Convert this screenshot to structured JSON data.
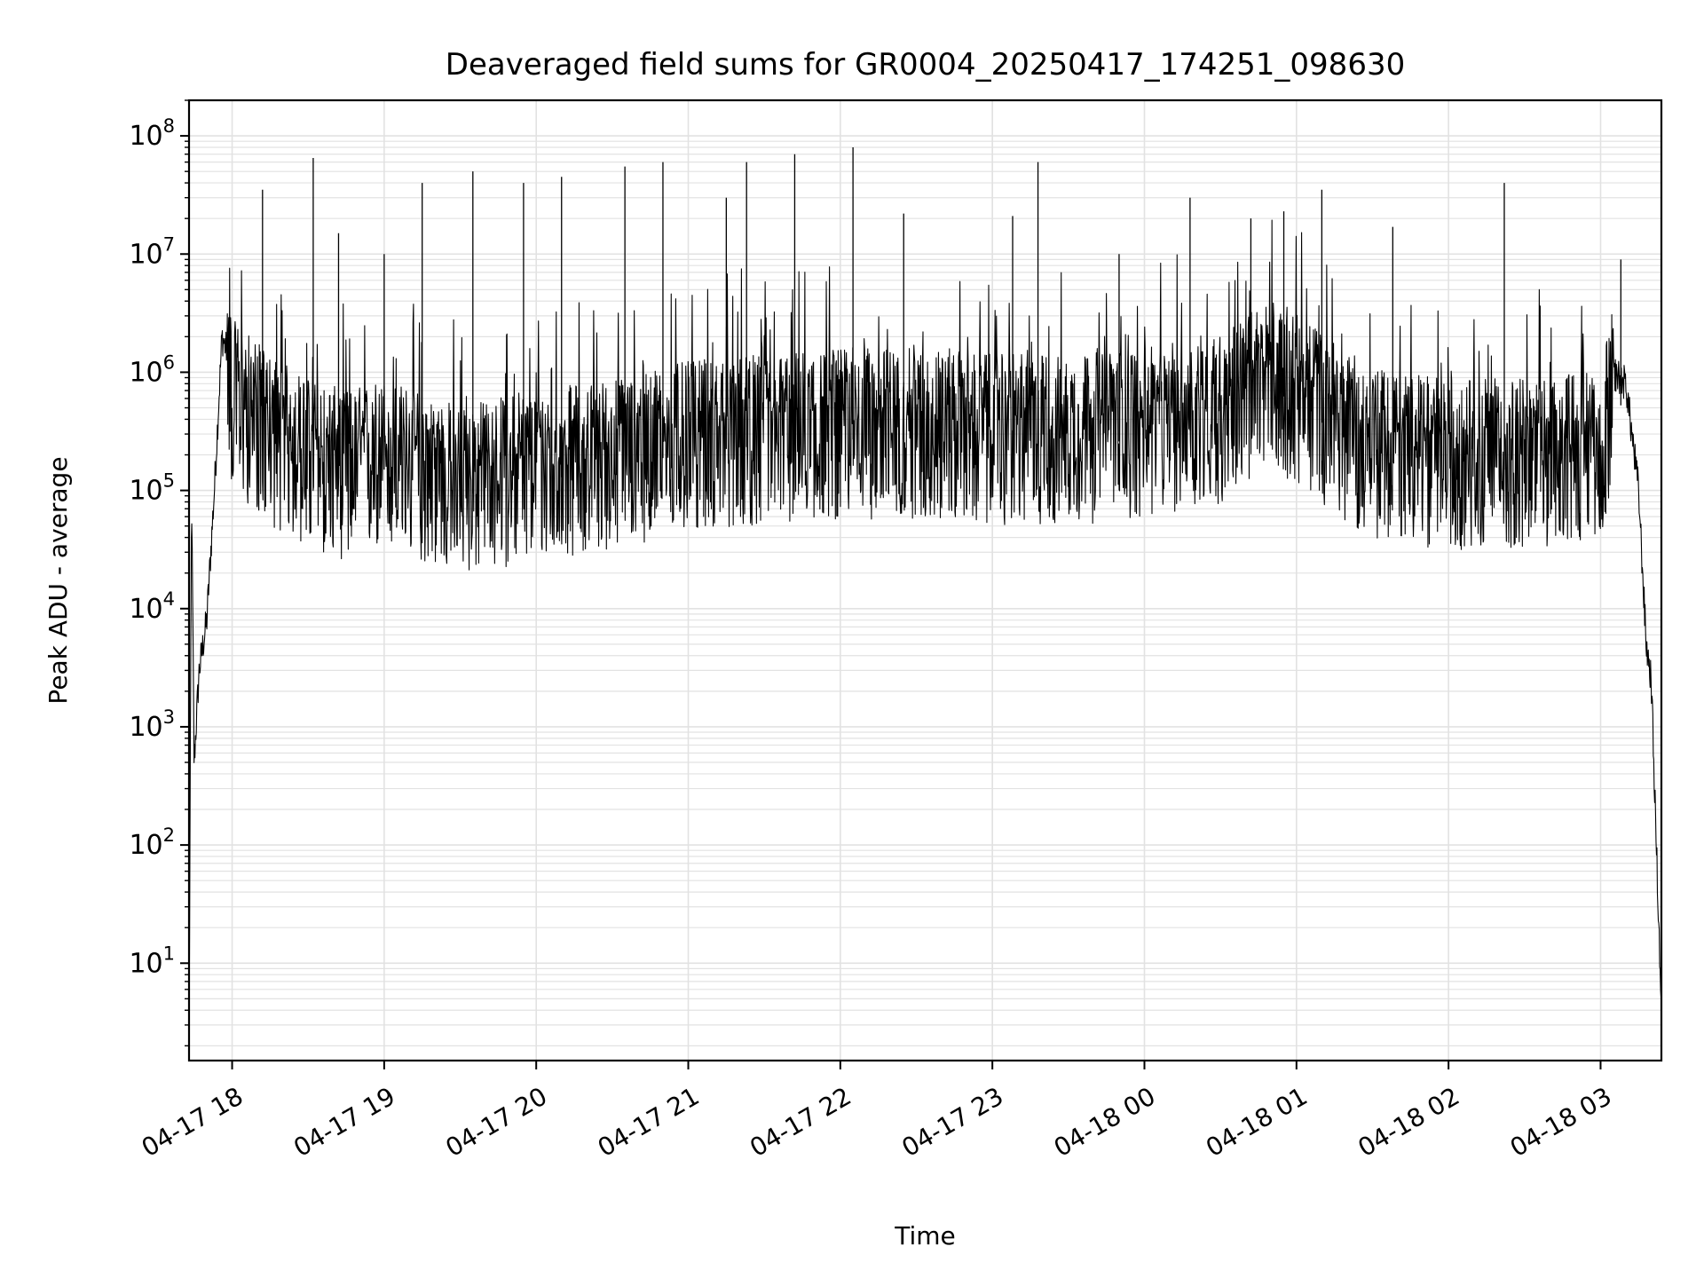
{
  "chart_data": {
    "type": "line",
    "title": "Deaveraged field sums for GR0004_20250417_174251_098630",
    "xlabel": "Time",
    "ylabel": "Peak ADU - average",
    "yscale": "log",
    "ylim": [
      1.5,
      200000000
    ],
    "xlim": [
      "2025-04-17 17:43",
      "2025-04-18 03:24"
    ],
    "grid": "major and minor",
    "x_ticks": [
      "04-17 18",
      "04-17 19",
      "04-17 20",
      "04-17 21",
      "04-17 22",
      "04-17 23",
      "04-18 00",
      "04-18 01",
      "04-18 02",
      "04-18 03"
    ],
    "y_ticks": [
      {
        "base": "10",
        "exp": "1"
      },
      {
        "base": "10",
        "exp": "2"
      },
      {
        "base": "10",
        "exp": "3"
      },
      {
        "base": "10",
        "exp": "4"
      },
      {
        "base": "10",
        "exp": "5"
      },
      {
        "base": "10",
        "exp": "6"
      },
      {
        "base": "10",
        "exp": "7"
      },
      {
        "base": "10",
        "exp": "8"
      }
    ],
    "series": [
      {
        "color": "#000000",
        "points": [
          [
            "2025-04-17 17:43",
            2
          ],
          [
            "2025-04-17 17:44",
            100000
          ],
          [
            "2025-04-17 17:45",
            500
          ],
          [
            "2025-04-17 17:47",
            3000
          ],
          [
            "2025-04-17 17:50",
            8000
          ],
          [
            "2025-04-17 17:53",
            100000
          ],
          [
            "2025-04-17 17:56",
            2000000
          ],
          [
            "2025-04-17 17:58",
            1500000
          ],
          [
            "2025-04-17 18:00",
            800000
          ],
          [
            "2025-04-17 18:15",
            400000
          ],
          [
            "2025-04-17 18:30",
            250000
          ],
          [
            "2025-04-17 18:45",
            200000
          ],
          [
            "2025-04-17 19:00",
            250000
          ],
          [
            "2025-04-17 19:30",
            150000
          ],
          [
            "2025-04-17 20:00",
            200000
          ],
          [
            "2025-04-17 20:30",
            250000
          ],
          [
            "2025-04-17 21:00",
            350000
          ],
          [
            "2025-04-17 21:30",
            400000
          ],
          [
            "2025-04-17 22:00",
            450000
          ],
          [
            "2025-04-17 22:30",
            450000
          ],
          [
            "2025-04-17 23:00",
            400000
          ],
          [
            "2025-04-17 23:30",
            400000
          ],
          [
            "2025-04-18 00:00",
            450000
          ],
          [
            "2025-04-18 00:30",
            600000
          ],
          [
            "2025-04-18 00:50",
            1200000
          ],
          [
            "2025-04-18 01:00",
            900000
          ],
          [
            "2025-04-18 01:30",
            300000
          ],
          [
            "2025-04-18 02:00",
            250000
          ],
          [
            "2025-04-18 02:30",
            250000
          ],
          [
            "2025-04-18 03:00",
            300000
          ],
          [
            "2025-04-18 03:05",
            1000000
          ],
          [
            "2025-04-18 03:10",
            800000
          ],
          [
            "2025-04-18 03:15",
            100000
          ],
          [
            "2025-04-18 03:18",
            5000
          ],
          [
            "2025-04-18 03:20",
            2500
          ],
          [
            "2025-04-18 03:24",
            4
          ]
        ],
        "spikes": [
          [
            "2025-04-17 18:12",
            35000000
          ],
          [
            "2025-04-17 18:32",
            65000000
          ],
          [
            "2025-04-17 18:42",
            15000000
          ],
          [
            "2025-04-17 19:00",
            10000000
          ],
          [
            "2025-04-17 19:15",
            40000000
          ],
          [
            "2025-04-17 19:35",
            50000000
          ],
          [
            "2025-04-17 19:55",
            40000000
          ],
          [
            "2025-04-17 20:10",
            45000000
          ],
          [
            "2025-04-17 20:35",
            55000000
          ],
          [
            "2025-04-17 20:50",
            60000000
          ],
          [
            "2025-04-17 21:15",
            30000000
          ],
          [
            "2025-04-17 21:23",
            60000000
          ],
          [
            "2025-04-17 21:42",
            70000000
          ],
          [
            "2025-04-17 22:05",
            80000000
          ],
          [
            "2025-04-17 22:25",
            22000000
          ],
          [
            "2025-04-17 23:08",
            21000000
          ],
          [
            "2025-04-17 23:18",
            60000000
          ],
          [
            "2025-04-17 23:50",
            10000000
          ],
          [
            "2025-04-18 00:18",
            30000000
          ],
          [
            "2025-04-18 00:42",
            20000000
          ],
          [
            "2025-04-18 00:55",
            23000000
          ],
          [
            "2025-04-18 01:10",
            35000000
          ],
          [
            "2025-04-18 01:38",
            17000000
          ],
          [
            "2025-04-18 02:22",
            40000000
          ],
          [
            "2025-04-18 03:08",
            9000000
          ]
        ]
      }
    ]
  }
}
